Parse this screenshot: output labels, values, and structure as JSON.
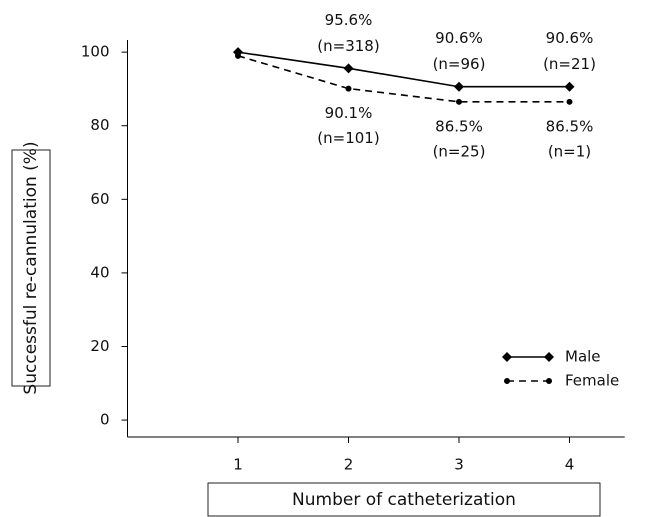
{
  "chart_data": {
    "type": "line",
    "y_label": "Successful re-cannulation (%)",
    "x_label": "Number of catheterization",
    "x": [
      1,
      2,
      3,
      4
    ],
    "xlim": [
      0,
      4.5
    ],
    "xticks": [
      1,
      2,
      3,
      4
    ],
    "ylim": [
      -4.6,
      103.3
    ],
    "yticks": [
      0,
      20,
      40,
      60,
      80,
      100
    ],
    "legend": "lower right",
    "series": [
      {
        "name": "Male",
        "color": "#000000",
        "dash": false,
        "marker": "diamond",
        "values": [
          100,
          95.6,
          90.6,
          90.6
        ],
        "value_labels": [
          null,
          "95.6%",
          "90.6%",
          "90.6%"
        ],
        "n_labels": [
          null,
          "(n=318)",
          "(n=96)",
          "(n=21)"
        ]
      },
      {
        "name": "Female",
        "color": "#000000",
        "dash": true,
        "marker": "circle",
        "values": [
          99,
          90.1,
          86.5,
          86.5
        ],
        "value_labels": [
          null,
          "90.1%",
          "86.5%",
          "86.5%"
        ],
        "n_labels": [
          null,
          "(n=101)",
          "(n=25)",
          "(n=1)"
        ]
      }
    ]
  }
}
